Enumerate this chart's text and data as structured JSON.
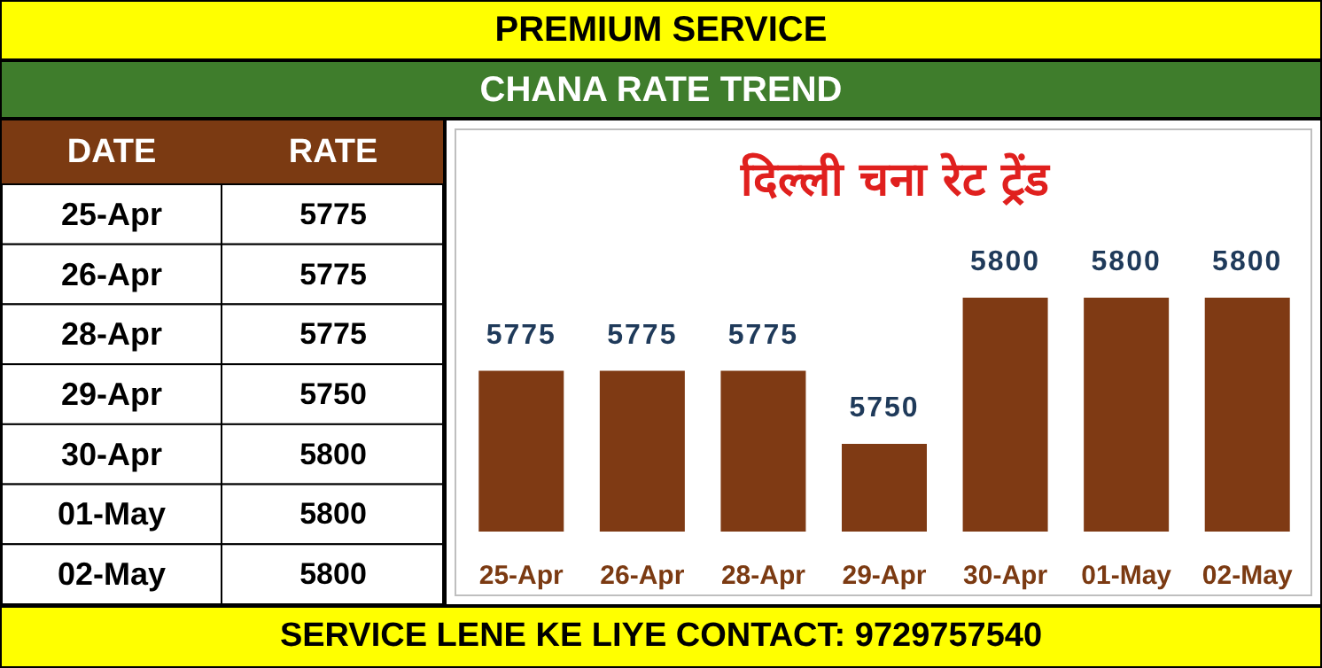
{
  "chart_data": [
    {
      "type": "other",
      "title": "PREMIUM SERVICE",
      "subtitle": "CHANA RATE TREND",
      "xlabel": "DATE",
      "ylabel": "RATE",
      "categories": [
        "25-Apr",
        "26-Apr",
        "28-Apr",
        "29-Apr",
        "30-Apr",
        "01-May",
        "02-May"
      ],
      "values": [
        5775,
        5775,
        5775,
        5750,
        5800,
        5800,
        5800
      ],
      "data_labels": true,
      "annotations": [
        "SERVICE LENE KE LIYE CONTACT: 9729757540"
      ]
    },
    {
      "type": "bar",
      "title": "दिल्ली चना रेट ट्रेंड",
      "categories": [
        "25-Apr",
        "26-Apr",
        "28-Apr",
        "29-Apr",
        "30-Apr",
        "01-May",
        "02-May"
      ],
      "values": [
        5775,
        5775,
        5775,
        5750,
        5800,
        5800,
        5800
      ],
      "color": "#7f3a14",
      "ylim": [
        5720,
        5800
      ],
      "data_labels": true
    }
  ]
}
